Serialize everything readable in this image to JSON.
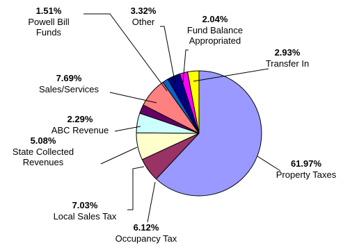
{
  "chart_data": {
    "type": "pie",
    "title": "",
    "start_angle_deg": 0,
    "direction": "clockwise",
    "slices": [
      {
        "label": "Property Taxes",
        "label_lines": [
          "Property Taxes"
        ],
        "value": 61.97,
        "display": "61.97%",
        "color": "#9999ff"
      },
      {
        "label": "Occupancy Tax",
        "label_lines": [
          "Occupancy Tax"
        ],
        "value": 6.12,
        "display": "6.12%",
        "color": "#993366"
      },
      {
        "label": "Local Sales Tax",
        "label_lines": [
          "Local Sales Tax"
        ],
        "value": 7.03,
        "display": "7.03%",
        "color": "#ffffcc"
      },
      {
        "label": "State Collected Revenues",
        "label_lines": [
          "State Collected",
          "Revenues"
        ],
        "value": 5.08,
        "display": "5.08%",
        "color": "#ccffff"
      },
      {
        "label": "ABC Revenue",
        "label_lines": [
          "ABC Revenue"
        ],
        "value": 2.29,
        "display": "2.29%",
        "color": "#660066"
      },
      {
        "label": "Sales/Services",
        "label_lines": [
          "Sales/Services"
        ],
        "value": 7.69,
        "display": "7.69%",
        "color": "#ff8080"
      },
      {
        "label": "Powell Bill Funds",
        "label_lines": [
          "Powell Bill",
          "Funds"
        ],
        "value": 1.51,
        "display": "1.51%",
        "color": "#0066cc"
      },
      {
        "label": "Other",
        "label_lines": [
          "Other"
        ],
        "value": 3.32,
        "display": "3.32%",
        "color": "#000080"
      },
      {
        "label": "Fund Balance Appropriated",
        "label_lines": [
          "Fund Balance",
          "Appropriated"
        ],
        "value": 2.04,
        "display": "2.04%",
        "color": "#ff00ff"
      },
      {
        "label": "Transfer In",
        "label_lines": [
          "Transfer In"
        ],
        "value": 2.93,
        "display": "2.93%",
        "color": "#ffff00"
      }
    ]
  }
}
